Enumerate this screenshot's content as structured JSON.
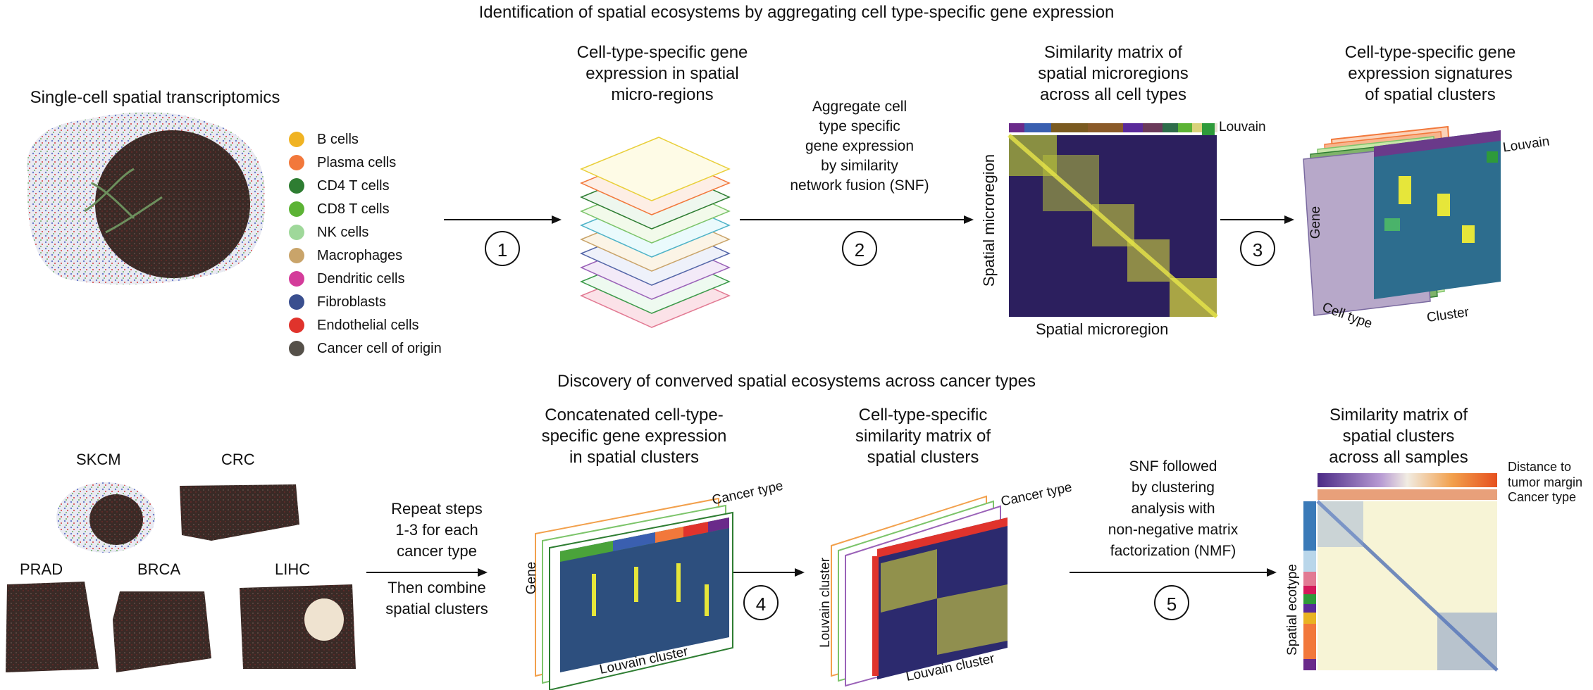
{
  "top": {
    "title": "Identification of spatial ecosystems by aggregating cell type-specific gene expression",
    "stx_title": "Single-cell spatial transcriptomics",
    "legend": [
      {
        "label": "B cells",
        "color": "#f0b323"
      },
      {
        "label": "Plasma cells",
        "color": "#f2783b"
      },
      {
        "label": "CD4 T cells",
        "color": "#2e7d32"
      },
      {
        "label": "CD8 T cells",
        "color": "#5cb335"
      },
      {
        "label": "NK cells",
        "color": "#9fd89a"
      },
      {
        "label": "Macrophages",
        "color": "#c9a46a"
      },
      {
        "label": "Dendritic cells",
        "color": "#d43c9a"
      },
      {
        "label": "Fibroblasts",
        "color": "#3a4f8f"
      },
      {
        "label": "Endothelial cells",
        "color": "#e0332c"
      },
      {
        "label": "Cancer cell of origin",
        "color": "#555049"
      }
    ],
    "panel2_title": [
      "Cell-type-specific gene",
      "expression in spatial",
      "micro-regions"
    ],
    "step2_text": [
      "Aggregate cell",
      "type specific",
      "gene expression",
      "by similarity",
      "network fusion (SNF)"
    ],
    "panel3_title": [
      "Similarity matrix of",
      "spatial microregions",
      "across all cell types"
    ],
    "louvain": "Louvain",
    "axis_y": "Spatial microregion",
    "axis_x": "Spatial microregion",
    "panel4_title": [
      "Cell-type-specific gene",
      "expression signatures",
      "of spatial clusters"
    ],
    "gene": "Gene",
    "cell_type": "Cell type",
    "cluster": "Cluster",
    "steps": [
      "1",
      "2",
      "3"
    ]
  },
  "bottom": {
    "title": "Discovery of converved spatial ecosystems across cancer types",
    "cancers": [
      "SKCM",
      "CRC",
      "PRAD",
      "BRCA",
      "LIHC"
    ],
    "repeat_text": [
      "Repeat steps",
      "1-3 for each",
      "cancer type"
    ],
    "combine_text": [
      "Then combine",
      "spatial clusters"
    ],
    "panel2_title": [
      "Concatenated cell-type-",
      "specific gene expression",
      "in spatial clusters"
    ],
    "cancer_type": "Cancer type",
    "gene": "Gene",
    "louvain_cluster": "Louvain cluster",
    "panel3_title": [
      "Cell-type-specific",
      "similarity matrix of",
      "spatial clusters"
    ],
    "step5_text": [
      "SNF followed",
      "by clustering",
      "analysis with",
      "non-negative matrix",
      "factorization (NMF)"
    ],
    "panel4_title": [
      "Similarity matrix of",
      "spatial clusters",
      "across all samples"
    ],
    "dist_label": [
      "Distance to",
      "tumor margin"
    ],
    "spatial_ecotype": "Spatial ecotype",
    "steps": [
      "4",
      "5"
    ]
  }
}
